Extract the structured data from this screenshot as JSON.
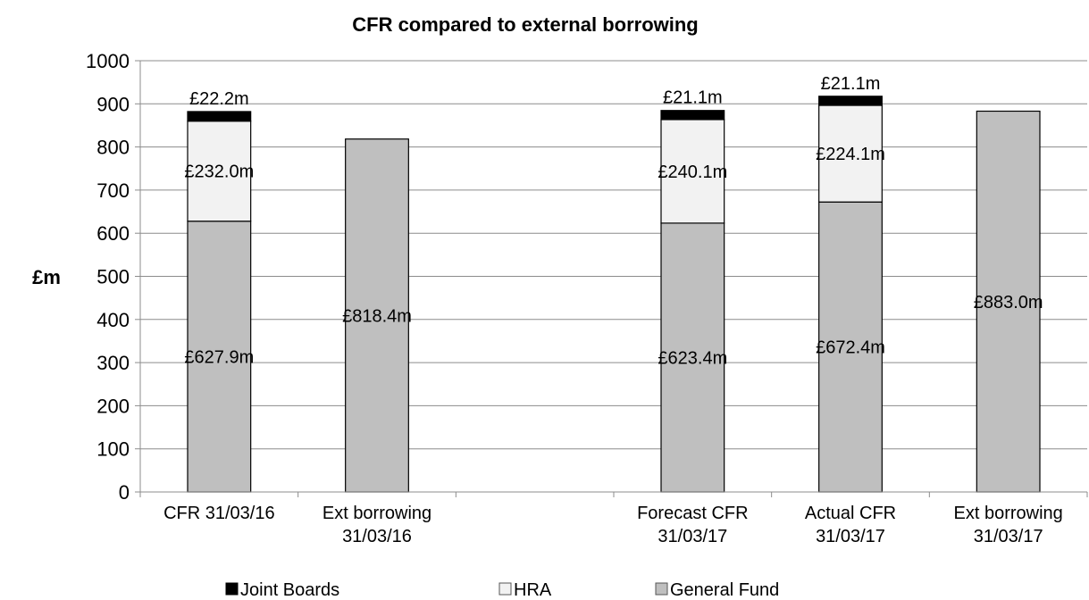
{
  "chart_data": {
    "type": "bar",
    "stacked": true,
    "title": "CFR compared to external borrowing",
    "ylabel": "£m",
    "xlabel": "",
    "ylim": [
      0,
      1000
    ],
    "yticks": [
      0,
      100,
      200,
      300,
      400,
      500,
      600,
      700,
      800,
      900,
      1000
    ],
    "grid": true,
    "legend_position": "bottom",
    "categories": [
      [
        "CFR 31/03/16"
      ],
      [
        "Ext borrowing",
        "31/03/16"
      ],
      [
        ""
      ],
      [
        "Forecast CFR",
        "31/03/17"
      ],
      [
        "Actual CFR",
        "31/03/17"
      ],
      [
        "Ext borrowing",
        "31/03/17"
      ]
    ],
    "series": [
      {
        "name": "General Fund",
        "color": "#bfbfbf",
        "values": [
          627.9,
          818.4,
          null,
          623.4,
          672.4,
          883.0
        ],
        "labels": [
          "£627.9m",
          "£818.4m",
          "",
          "£623.4m",
          "£672.4m",
          "£883.0m"
        ]
      },
      {
        "name": "HRA",
        "color": "#f2f2f2",
        "values": [
          232.0,
          null,
          null,
          240.1,
          224.1,
          null
        ],
        "labels": [
          "£232.0m",
          "",
          "",
          "£240.1m",
          "£224.1m",
          ""
        ]
      },
      {
        "name": "Joint Boards",
        "color": "#000000",
        "values": [
          22.2,
          null,
          null,
          21.1,
          21.1,
          null
        ],
        "labels": [
          "£22.2m",
          "",
          "",
          "£21.1m",
          "£21.1m",
          ""
        ]
      }
    ],
    "legend": [
      "Joint Boards",
      "HRA",
      "General Fund"
    ]
  }
}
